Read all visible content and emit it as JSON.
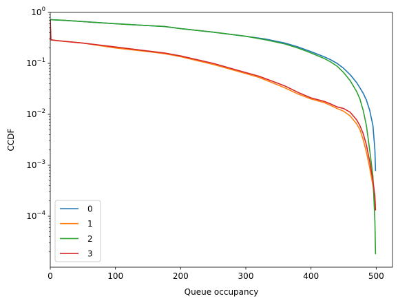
{
  "chart_data": {
    "type": "line",
    "title": "",
    "xlabel": "Queue occupancy",
    "ylabel": "CCDF",
    "xscale": "linear",
    "yscale": "log",
    "xlim": [
      0,
      525
    ],
    "ylim": [
      1e-05,
      1
    ],
    "xticks": [
      0,
      100,
      200,
      300,
      400,
      500
    ],
    "xtick_labels": [
      "0",
      "100",
      "200",
      "300",
      "400",
      "500"
    ],
    "yticks": [
      1,
      0.1,
      0.01,
      0.001,
      0.0001
    ],
    "ytick_labels": [
      {
        "base": "10",
        "exp": "0"
      },
      {
        "base": "10",
        "exp": "−1"
      },
      {
        "base": "10",
        "exp": "−2"
      },
      {
        "base": "10",
        "exp": "−3"
      },
      {
        "base": "10",
        "exp": "−4"
      }
    ],
    "grid": false,
    "legend_position": "lower-left",
    "series": [
      {
        "name": "0",
        "color": "#1f77b4",
        "x": [
          0,
          20,
          50,
          100,
          150,
          175,
          200,
          250,
          300,
          330,
          360,
          380,
          400,
          420,
          430,
          440,
          450,
          460,
          470,
          480,
          485,
          490,
          495,
          498,
          499
        ],
        "y": [
          0.72,
          0.7,
          0.66,
          0.6,
          0.55,
          0.53,
          0.48,
          0.41,
          0.34,
          0.3,
          0.25,
          0.21,
          0.17,
          0.135,
          0.118,
          0.1,
          0.08,
          0.06,
          0.042,
          0.026,
          0.019,
          0.012,
          0.006,
          0.002,
          0.00077
        ]
      },
      {
        "name": "1",
        "color": "#ff7f0e",
        "x": [
          0,
          1,
          10,
          50,
          100,
          150,
          175,
          200,
          250,
          300,
          320,
          340,
          360,
          380,
          400,
          420,
          430,
          440,
          450,
          460,
          470,
          475,
          480,
          485,
          490,
          495,
          498,
          499
        ],
        "y": [
          0.7,
          0.29,
          0.28,
          0.25,
          0.2,
          0.17,
          0.155,
          0.135,
          0.095,
          0.063,
          0.053,
          0.042,
          0.033,
          0.025,
          0.02,
          0.017,
          0.015,
          0.013,
          0.0115,
          0.0093,
          0.0065,
          0.005,
          0.0032,
          0.0018,
          0.0009,
          0.0004,
          0.0002,
          0.00014
        ]
      },
      {
        "name": "2",
        "color": "#2ca02c",
        "x": [
          0,
          20,
          50,
          100,
          150,
          175,
          200,
          250,
          300,
          330,
          360,
          380,
          400,
          420,
          430,
          440,
          450,
          460,
          470,
          475,
          480,
          485,
          490,
          495,
          498,
          499
        ],
        "y": [
          0.72,
          0.7,
          0.66,
          0.6,
          0.55,
          0.53,
          0.48,
          0.41,
          0.34,
          0.29,
          0.24,
          0.2,
          0.16,
          0.125,
          0.107,
          0.088,
          0.066,
          0.046,
          0.028,
          0.02,
          0.012,
          0.006,
          0.002,
          0.0006,
          8e-05,
          1.8e-05
        ]
      },
      {
        "name": "3",
        "color": "#d62728",
        "x": [
          0,
          1,
          10,
          50,
          100,
          150,
          175,
          200,
          250,
          300,
          320,
          340,
          360,
          380,
          400,
          420,
          430,
          440,
          450,
          460,
          470,
          475,
          480,
          485,
          490,
          495,
          498,
          499
        ],
        "y": [
          0.7,
          0.29,
          0.28,
          0.25,
          0.21,
          0.175,
          0.16,
          0.14,
          0.1,
          0.066,
          0.056,
          0.045,
          0.036,
          0.027,
          0.021,
          0.018,
          0.016,
          0.014,
          0.013,
          0.011,
          0.0078,
          0.006,
          0.0042,
          0.0025,
          0.0012,
          0.0005,
          0.00025,
          0.00013
        ]
      }
    ]
  }
}
